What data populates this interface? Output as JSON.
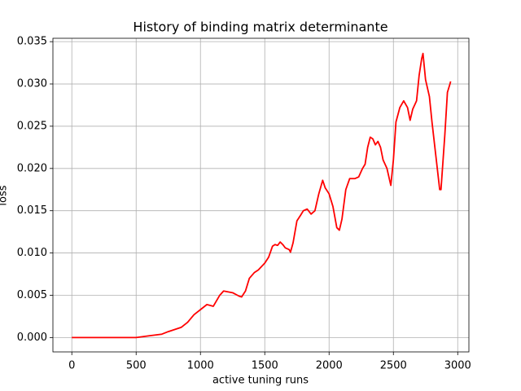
{
  "chart_data": {
    "type": "line",
    "title": "History of binding matrix determinante",
    "xlabel": "active tuning runs",
    "ylabel": "loss",
    "x": [
      0,
      500,
      600,
      700,
      750,
      850,
      900,
      950,
      1000,
      1050,
      1100,
      1150,
      1180,
      1250,
      1300,
      1320,
      1350,
      1380,
      1420,
      1450,
      1500,
      1530,
      1560,
      1580,
      1600,
      1620,
      1640,
      1660,
      1690,
      1700,
      1720,
      1750,
      1780,
      1800,
      1830,
      1860,
      1890,
      1920,
      1950,
      1970,
      2000,
      2030,
      2060,
      2080,
      2100,
      2130,
      2160,
      2200,
      2230,
      2260,
      2280,
      2300,
      2320,
      2340,
      2360,
      2380,
      2400,
      2420,
      2450,
      2480,
      2500,
      2520,
      2550,
      2580,
      2610,
      2630,
      2650,
      2680,
      2700,
      2720,
      2730,
      2750,
      2780,
      2800,
      2830,
      2860,
      2870,
      2900,
      2920,
      2940,
      2945
    ],
    "series": [
      {
        "color": "#ff0000",
        "values": [
          0,
          0,
          0.0002,
          0.0004,
          0.0007,
          0.0012,
          0.0018,
          0.0027,
          0.0033,
          0.0039,
          0.0037,
          0.005,
          0.0055,
          0.0053,
          0.0049,
          0.0048,
          0.0055,
          0.007,
          0.0077,
          0.008,
          0.0088,
          0.0095,
          0.0108,
          0.011,
          0.0109,
          0.0113,
          0.011,
          0.0106,
          0.0104,
          0.0101,
          0.0112,
          0.0138,
          0.0145,
          0.015,
          0.0152,
          0.0146,
          0.015,
          0.017,
          0.0186,
          0.0177,
          0.017,
          0.0155,
          0.013,
          0.0127,
          0.014,
          0.0175,
          0.0188,
          0.0188,
          0.019,
          0.02,
          0.0205,
          0.0225,
          0.0237,
          0.0235,
          0.0228,
          0.0232,
          0.0225,
          0.021,
          0.02,
          0.018,
          0.021,
          0.0255,
          0.0272,
          0.028,
          0.0272,
          0.0257,
          0.027,
          0.028,
          0.031,
          0.033,
          0.0336,
          0.0305,
          0.0285,
          0.0255,
          0.0215,
          0.0175,
          0.0175,
          0.024,
          0.029,
          0.03,
          0.0303
        ]
      }
    ],
    "xlim": [
      -147,
      3087
    ],
    "ylim": [
      -0.0017,
      0.0354
    ],
    "xticks": [
      0,
      500,
      1000,
      1500,
      2000,
      2500,
      3000
    ],
    "yticks": [
      {
        "value": 0,
        "label": "0.000"
      },
      {
        "value": 0.005,
        "label": "0.005"
      },
      {
        "value": 0.01,
        "label": "0.010"
      },
      {
        "value": 0.015,
        "label": "0.015"
      },
      {
        "value": 0.02,
        "label": "0.020"
      },
      {
        "value": 0.025,
        "label": "0.025"
      },
      {
        "value": 0.03,
        "label": "0.030"
      },
      {
        "value": 0.035,
        "label": "0.035"
      }
    ],
    "grid": true
  }
}
